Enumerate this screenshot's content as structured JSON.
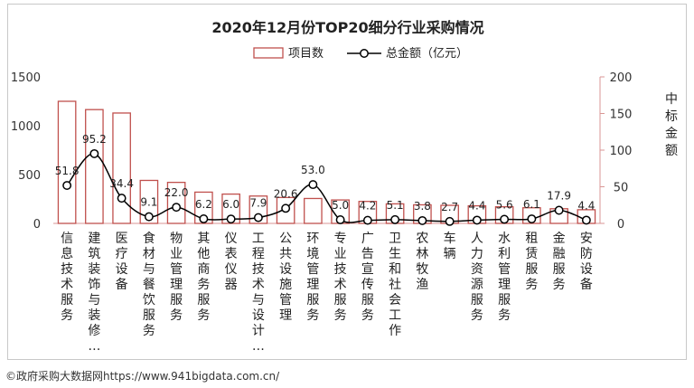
{
  "chart_data": {
    "type": "bar",
    "title": "2020年12月份TOP20细分行业采购情况",
    "categories": [
      "信息技术服务",
      "建筑装饰与装修…",
      "医疗设备",
      "食材与餐饮服务",
      "物业管理服务",
      "其他商务服务",
      "仪表仪器",
      "工程技术与设计…",
      "公共设施管理",
      "环境管理服务",
      "专业技术服务",
      "广告宣传服务",
      "卫生和社会工作",
      "农林牧渔",
      "车辆",
      "人力资源服务",
      "水利管理服务",
      "租赁服务",
      "金融服务",
      "安防设备"
    ],
    "series": [
      {
        "name": "项目数",
        "type": "bar",
        "axis": "left",
        "values": [
          1250,
          1165,
          1130,
          440,
          420,
          320,
          300,
          280,
          265,
          255,
          240,
          225,
          200,
          190,
          185,
          180,
          170,
          160,
          150,
          140
        ]
      },
      {
        "name": "总金额（亿元）",
        "type": "line",
        "axis": "right",
        "values": [
          51.8,
          95.2,
          34.4,
          9.1,
          22.0,
          6.2,
          6.0,
          7.9,
          20.6,
          53.0,
          5.0,
          4.2,
          5.1,
          3.8,
          2.7,
          4.4,
          5.6,
          6.1,
          17.9,
          4.4
        ],
        "labels": [
          "51.8",
          "95.2",
          "34.4",
          "9.1",
          "22.0",
          "6.2",
          "6.0",
          "7.9",
          "20.6",
          "53.0",
          "5.0",
          "4.2",
          "5.1",
          "3.8",
          "2.7",
          "4.4",
          "5.6",
          "6.1",
          "17.9",
          "4.4"
        ]
      }
    ],
    "y_left": {
      "lim": [
        0,
        1500
      ],
      "ticks": [
        "0",
        "500",
        "1000",
        "1500"
      ]
    },
    "y_right": {
      "lim": [
        0,
        200
      ],
      "ticks": [
        "0",
        "50",
        "100",
        "150",
        "200"
      ],
      "label": "中标金额"
    },
    "legend_position": "top-center",
    "grid": false,
    "colors": {
      "bar_stroke": "#c0504d",
      "line": "#000000",
      "axis_right": "#c0504d",
      "tick_text": "#333333"
    }
  },
  "source": "©政府采购大数据网https://www.941bigdata.com.cn/"
}
